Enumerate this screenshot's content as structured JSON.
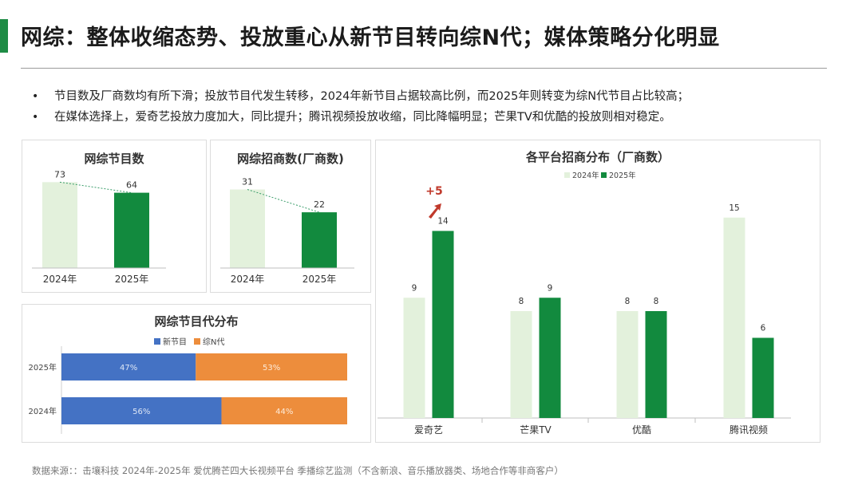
{
  "title": "网综：整体收缩态势、投放重心从新节目转向综N代；媒体策略分化明显",
  "bullets": [
    "节目数及厂商数均有所下滑；投放节目代发生转移，2024年新节目占据较高比例，而2025年则转变为综N代节目占比较高；",
    "在媒体选择上，爱奇艺投放力度加大，同比提升；腾讯视频投放收缩，同比降幅明显；芒果TV和优酷的投放则相对稳定。"
  ],
  "source": "数据来源：：击壤科技 2024年-2025年 爱优腾芒四大长视频平台 季播综艺监测（不含新浪、音乐播放器类、场地合作等非商客户）",
  "colors": {
    "y2024": "#e3f1dc",
    "y2025": "#128a3e",
    "new": "#4472c4",
    "sequel": "#ed8d3c",
    "accent": "#c0392b"
  },
  "chart_data": [
    {
      "type": "bar",
      "title": "网综节目数",
      "categories": [
        "2024年",
        "2025年"
      ],
      "values": [
        73,
        64
      ],
      "ylim": [
        0,
        80
      ]
    },
    {
      "type": "bar",
      "title": "网综招商数(厂商数)",
      "categories": [
        "2024年",
        "2025年"
      ],
      "values": [
        31,
        22
      ],
      "ylim": [
        0,
        34
      ]
    },
    {
      "type": "bar",
      "orientation": "horizontal-stacked-percent",
      "title": "网综节目代分布",
      "categories": [
        "2025年",
        "2024年"
      ],
      "series": [
        {
          "name": "新节目",
          "values": [
            47,
            56
          ],
          "labels": [
            "47%",
            "56%"
          ]
        },
        {
          "name": "综N代",
          "values": [
            53,
            44
          ],
          "labels": [
            "53%",
            "44%"
          ]
        }
      ],
      "xlim": [
        0,
        100
      ],
      "legend": "top"
    },
    {
      "type": "bar",
      "title": "各平台招商分布（厂商数）",
      "categories": [
        "爱奇艺",
        "芒果TV",
        "优酷",
        "腾讯视频"
      ],
      "series": [
        {
          "name": "2024年",
          "values": [
            9,
            8,
            8,
            15
          ]
        },
        {
          "name": "2025年",
          "values": [
            14,
            9,
            8,
            6
          ]
        }
      ],
      "annotation": "+5",
      "ylim": [
        0,
        16
      ],
      "legend": "top"
    }
  ]
}
